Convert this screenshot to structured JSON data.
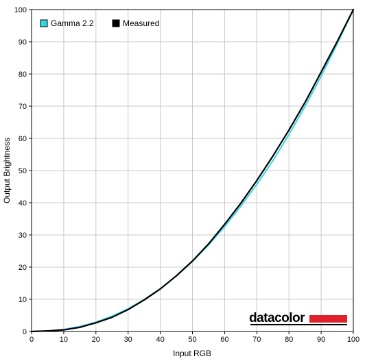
{
  "chart_data": {
    "type": "line",
    "xlabel": "Input RGB",
    "ylabel": "Output Brightness",
    "xlim": [
      0,
      100
    ],
    "ylim": [
      0,
      100
    ],
    "xticks": [
      0,
      10,
      20,
      30,
      40,
      50,
      60,
      70,
      80,
      90,
      100
    ],
    "yticks": [
      0,
      10,
      20,
      30,
      40,
      50,
      60,
      70,
      80,
      90,
      100
    ],
    "grid": true,
    "legend_position": "top-left",
    "series": [
      {
        "name": "Gamma 2.2",
        "color": "#33d6e6",
        "x": [
          0,
          5,
          10,
          15,
          20,
          25,
          30,
          35,
          40,
          45,
          50,
          55,
          60,
          65,
          70,
          75,
          80,
          85,
          90,
          95,
          100
        ],
        "y": [
          0.0,
          0.14,
          0.63,
          1.54,
          2.9,
          4.74,
          7.08,
          9.93,
          13.31,
          17.24,
          21.76,
          26.86,
          32.57,
          38.91,
          45.68,
          53.06,
          61.23,
          69.94,
          79.32,
          89.34,
          100.0
        ]
      },
      {
        "name": "Measured",
        "color": "#000000",
        "x": [
          0,
          5,
          10,
          15,
          20,
          25,
          30,
          35,
          40,
          45,
          50,
          55,
          60,
          65,
          70,
          75,
          80,
          85,
          90,
          95,
          100
        ],
        "y": [
          0.0,
          0.2,
          0.5,
          1.3,
          2.7,
          4.4,
          6.8,
          9.8,
          13.2,
          17.3,
          21.9,
          27.2,
          33.3,
          39.8,
          46.9,
          54.5,
          62.6,
          71.2,
          80.6,
          90.1,
          100.0
        ]
      }
    ]
  },
  "brand": {
    "text": "datacolor",
    "bar_color": "#e0202a"
  }
}
